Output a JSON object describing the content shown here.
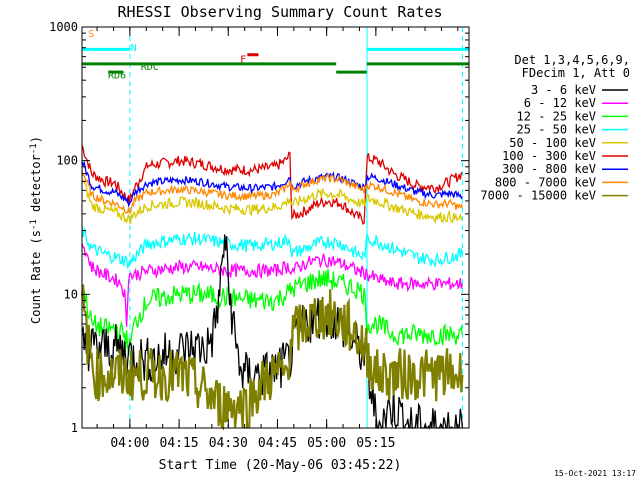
{
  "chart_data": {
    "type": "line",
    "title": "RHESSI Observing Summary Count Rates",
    "xlabel": "Start Time (20-May-06 03:45:22)",
    "ylabel": "Count Rate (s",
    "ylabel_sup": "-1",
    "ylabel_mid": " detector",
    "ylabel_end": ")",
    "yscale": "log",
    "ylim": [
      1,
      1000
    ],
    "y_ticks": [
      1,
      10,
      100,
      1000
    ],
    "y_tick_labels": [
      "1",
      "10",
      "100",
      "1000"
    ],
    "x_ticks": [
      "04:00",
      "04:15",
      "04:30",
      "04:45",
      "05:00",
      "05:15"
    ],
    "x_tick_minutes": [
      14.6,
      29.6,
      44.6,
      59.6,
      74.6,
      89.6
    ],
    "xlim_minutes": [
      0,
      118
    ],
    "footer_date": "15-Oct-2021 13:17",
    "legend": {
      "header": [
        "Det 1,3,4,5,6,9,",
        "FDecim 1, Att 0"
      ],
      "placement": "right"
    },
    "series": [
      {
        "name": "3 - 6 keV",
        "color": "#000000"
      },
      {
        "name": "6 - 12 keV",
        "color": "#ff00ff"
      },
      {
        "name": "12 - 25 keV",
        "color": "#00ff00"
      },
      {
        "name": "25 - 50 keV",
        "color": "#00ffff"
      },
      {
        "name": "50 - 100 keV",
        "color": "#d8c800"
      },
      {
        "name": "100 - 300 keV",
        "color": "#dd0000"
      },
      {
        "name": "300 - 800 keV",
        "color": "#0000ff"
      },
      {
        "name": "800 - 7000 keV",
        "color": "#ff8800"
      },
      {
        "name": "7000 - 15000 keV",
        "color": "#808000"
      }
    ],
    "curves": [
      {
        "series": 5,
        "points": [
          [
            0,
            130
          ],
          [
            3,
            80
          ],
          [
            7,
            70
          ],
          [
            10,
            68
          ],
          [
            13,
            55
          ],
          [
            14.5,
            50
          ],
          [
            16,
            62
          ],
          [
            20,
            92
          ],
          [
            30,
            100
          ],
          [
            36,
            95
          ],
          [
            44,
            86
          ],
          [
            52,
            85
          ],
          [
            59,
            90
          ],
          [
            62,
            100
          ],
          [
            63.4,
            110
          ],
          [
            64,
            38
          ],
          [
            68,
            42
          ],
          [
            72,
            48
          ],
          [
            75,
            50
          ],
          [
            79,
            48
          ],
          [
            84,
            38
          ],
          [
            86,
            36
          ],
          [
            87,
            105
          ],
          [
            90,
            100
          ],
          [
            95,
            80
          ],
          [
            102,
            65
          ],
          [
            108,
            63
          ],
          [
            112,
            70
          ],
          [
            116,
            80
          ]
        ]
      },
      {
        "series": 6,
        "points": [
          [
            0,
            100
          ],
          [
            3,
            65
          ],
          [
            7,
            60
          ],
          [
            10,
            58
          ],
          [
            13,
            52
          ],
          [
            14.5,
            48
          ],
          [
            16,
            58
          ],
          [
            20,
            68
          ],
          [
            30,
            72
          ],
          [
            36,
            70
          ],
          [
            44,
            64
          ],
          [
            52,
            62
          ],
          [
            59,
            64
          ],
          [
            62,
            70
          ],
          [
            63.4,
            76
          ],
          [
            64,
            64
          ],
          [
            68,
            70
          ],
          [
            72,
            74
          ],
          [
            75,
            76
          ],
          [
            79,
            74
          ],
          [
            84,
            66
          ],
          [
            86,
            63
          ],
          [
            87,
            76
          ],
          [
            90,
            74
          ],
          [
            95,
            67
          ],
          [
            102,
            58
          ],
          [
            108,
            55
          ],
          [
            112,
            57
          ],
          [
            116,
            54
          ]
        ]
      },
      {
        "series": 7,
        "points": [
          [
            0,
            85
          ],
          [
            3,
            55
          ],
          [
            7,
            50
          ],
          [
            10,
            48
          ],
          [
            13,
            44
          ],
          [
            14.5,
            41
          ],
          [
            16,
            50
          ],
          [
            20,
            58
          ],
          [
            30,
            61
          ],
          [
            36,
            59
          ],
          [
            44,
            55
          ],
          [
            52,
            54
          ],
          [
            59,
            56
          ],
          [
            62,
            62
          ],
          [
            63.4,
            70
          ],
          [
            64,
            60
          ],
          [
            68,
            67
          ],
          [
            72,
            72
          ],
          [
            75,
            74
          ],
          [
            79,
            72
          ],
          [
            84,
            63
          ],
          [
            86,
            60
          ],
          [
            87,
            66
          ],
          [
            90,
            64
          ],
          [
            95,
            58
          ],
          [
            102,
            50
          ],
          [
            108,
            47
          ],
          [
            112,
            48
          ],
          [
            116,
            44
          ]
        ]
      },
      {
        "series": 4,
        "points": [
          [
            0,
            75
          ],
          [
            3,
            46
          ],
          [
            7,
            43
          ],
          [
            10,
            41
          ],
          [
            13,
            38
          ],
          [
            14.5,
            36
          ],
          [
            16,
            40
          ],
          [
            20,
            46
          ],
          [
            30,
            49
          ],
          [
            36,
            48
          ],
          [
            44,
            44
          ],
          [
            52,
            43
          ],
          [
            59,
            45
          ],
          [
            62,
            48
          ],
          [
            63.4,
            52
          ],
          [
            64,
            47
          ],
          [
            68,
            52
          ],
          [
            72,
            56
          ],
          [
            75,
            57
          ],
          [
            79,
            55
          ],
          [
            84,
            49
          ],
          [
            86,
            47
          ],
          [
            87,
            52
          ],
          [
            90,
            50
          ],
          [
            95,
            45
          ],
          [
            102,
            40
          ],
          [
            108,
            38
          ],
          [
            112,
            38
          ],
          [
            116,
            36
          ]
        ]
      },
      {
        "series": 3,
        "points": [
          [
            0,
            30
          ],
          [
            3,
            22
          ],
          [
            7,
            20
          ],
          [
            10,
            19
          ],
          [
            13,
            18
          ],
          [
            14.5,
            17
          ],
          [
            16,
            19
          ],
          [
            20,
            24
          ],
          [
            30,
            26
          ],
          [
            36,
            26
          ],
          [
            44,
            24
          ],
          [
            52,
            23
          ],
          [
            59,
            24
          ],
          [
            62,
            25
          ],
          [
            63.4,
            26
          ],
          [
            64,
            20
          ],
          [
            68,
            22
          ],
          [
            72,
            24
          ],
          [
            75,
            25
          ],
          [
            79,
            24
          ],
          [
            84,
            20
          ],
          [
            86,
            19
          ],
          [
            87,
            26
          ],
          [
            90,
            25
          ],
          [
            95,
            22
          ],
          [
            102,
            19
          ],
          [
            108,
            18
          ],
          [
            112,
            19
          ],
          [
            116,
            20
          ]
        ]
      },
      {
        "series": 1,
        "points": [
          [
            0,
            25
          ],
          [
            3,
            16
          ],
          [
            7,
            14
          ],
          [
            10,
            13
          ],
          [
            12,
            12
          ],
          [
            13,
            10
          ],
          [
            13.6,
            6
          ],
          [
            14.2,
            14
          ],
          [
            16,
            14
          ],
          [
            20,
            15
          ],
          [
            30,
            16
          ],
          [
            36,
            16
          ],
          [
            44,
            15
          ],
          [
            52,
            15
          ],
          [
            59,
            15
          ],
          [
            62,
            16
          ],
          [
            63.4,
            16
          ],
          [
            64,
            15
          ],
          [
            68,
            17
          ],
          [
            72,
            18
          ],
          [
            75,
            18
          ],
          [
            79,
            17
          ],
          [
            84,
            15
          ],
          [
            86,
            14.5
          ],
          [
            87,
            14
          ],
          [
            90,
            13
          ],
          [
            95,
            12
          ],
          [
            102,
            12
          ],
          [
            108,
            12
          ],
          [
            112,
            12
          ],
          [
            116,
            12
          ]
        ]
      },
      {
        "series": 2,
        "points": [
          [
            0,
            12
          ],
          [
            3,
            6
          ],
          [
            7,
            5.5
          ],
          [
            10,
            5.5
          ],
          [
            13,
            5
          ],
          [
            14.5,
            4
          ],
          [
            16,
            6
          ],
          [
            20,
            9
          ],
          [
            30,
            10
          ],
          [
            36,
            10
          ],
          [
            44,
            9.5
          ],
          [
            52,
            9
          ],
          [
            59,
            9
          ],
          [
            62,
            10
          ],
          [
            63.4,
            10.5
          ],
          [
            64,
            11
          ],
          [
            68,
            12
          ],
          [
            72,
            13
          ],
          [
            75,
            13
          ],
          [
            79,
            12
          ],
          [
            84,
            11
          ],
          [
            86,
            10
          ],
          [
            87,
            6
          ],
          [
            90,
            6
          ],
          [
            95,
            5
          ],
          [
            102,
            5
          ],
          [
            108,
            5
          ],
          [
            112,
            5
          ],
          [
            116,
            5
          ]
        ]
      },
      {
        "series": 0,
        "points": [
          [
            0,
            4
          ],
          [
            10,
            4
          ],
          [
            15,
            3.5
          ],
          [
            20,
            3.2
          ],
          [
            25,
            3.5
          ],
          [
            30,
            3.8
          ],
          [
            35,
            4
          ],
          [
            38,
            4
          ],
          [
            40,
            5
          ],
          [
            42,
            10
          ],
          [
            43.5,
            28
          ],
          [
            45,
            10
          ],
          [
            47,
            4
          ],
          [
            49,
            2.5
          ],
          [
            52,
            2.5
          ],
          [
            55,
            2.5
          ],
          [
            59,
            2.7
          ],
          [
            62,
            3
          ],
          [
            64,
            3.5
          ],
          [
            66,
            5
          ],
          [
            68,
            6
          ],
          [
            72,
            7
          ],
          [
            75,
            7
          ],
          [
            79,
            6
          ],
          [
            84,
            4
          ],
          [
            86,
            3.5
          ],
          [
            89,
            1.5
          ],
          [
            90,
            1
          ],
          [
            95,
            1.5
          ],
          [
            100,
            1
          ],
          [
            116,
            1
          ]
        ]
      },
      {
        "series": 8,
        "points": [
          [
            0,
            9
          ],
          [
            2,
            4
          ],
          [
            4,
            2.5
          ],
          [
            8,
            2.5
          ],
          [
            14,
            2.5
          ],
          [
            20,
            2.5
          ],
          [
            30,
            2.5
          ],
          [
            36,
            2
          ],
          [
            42,
            1.5
          ],
          [
            46,
            1.5
          ],
          [
            50,
            1.5
          ],
          [
            54,
            2
          ],
          [
            58,
            2.5
          ],
          [
            62,
            2.5
          ],
          [
            64,
            5
          ],
          [
            68,
            6
          ],
          [
            72,
            7
          ],
          [
            76,
            7
          ],
          [
            80,
            6
          ],
          [
            84,
            5
          ],
          [
            86,
            4
          ],
          [
            90,
            2.5
          ],
          [
            95,
            2.5
          ],
          [
            100,
            2.5
          ],
          [
            110,
            2.5
          ],
          [
            116,
            2.5
          ]
        ]
      }
    ],
    "annotations": [
      {
        "label": "S",
        "color": "#ff8800"
      },
      {
        "label": "N",
        "color": "#00ffff"
      },
      {
        "label": "F",
        "color": "#dd0000"
      },
      {
        "label": "RD6",
        "color": "#008000"
      },
      {
        "label": "RDC",
        "color": "#008000"
      }
    ]
  }
}
